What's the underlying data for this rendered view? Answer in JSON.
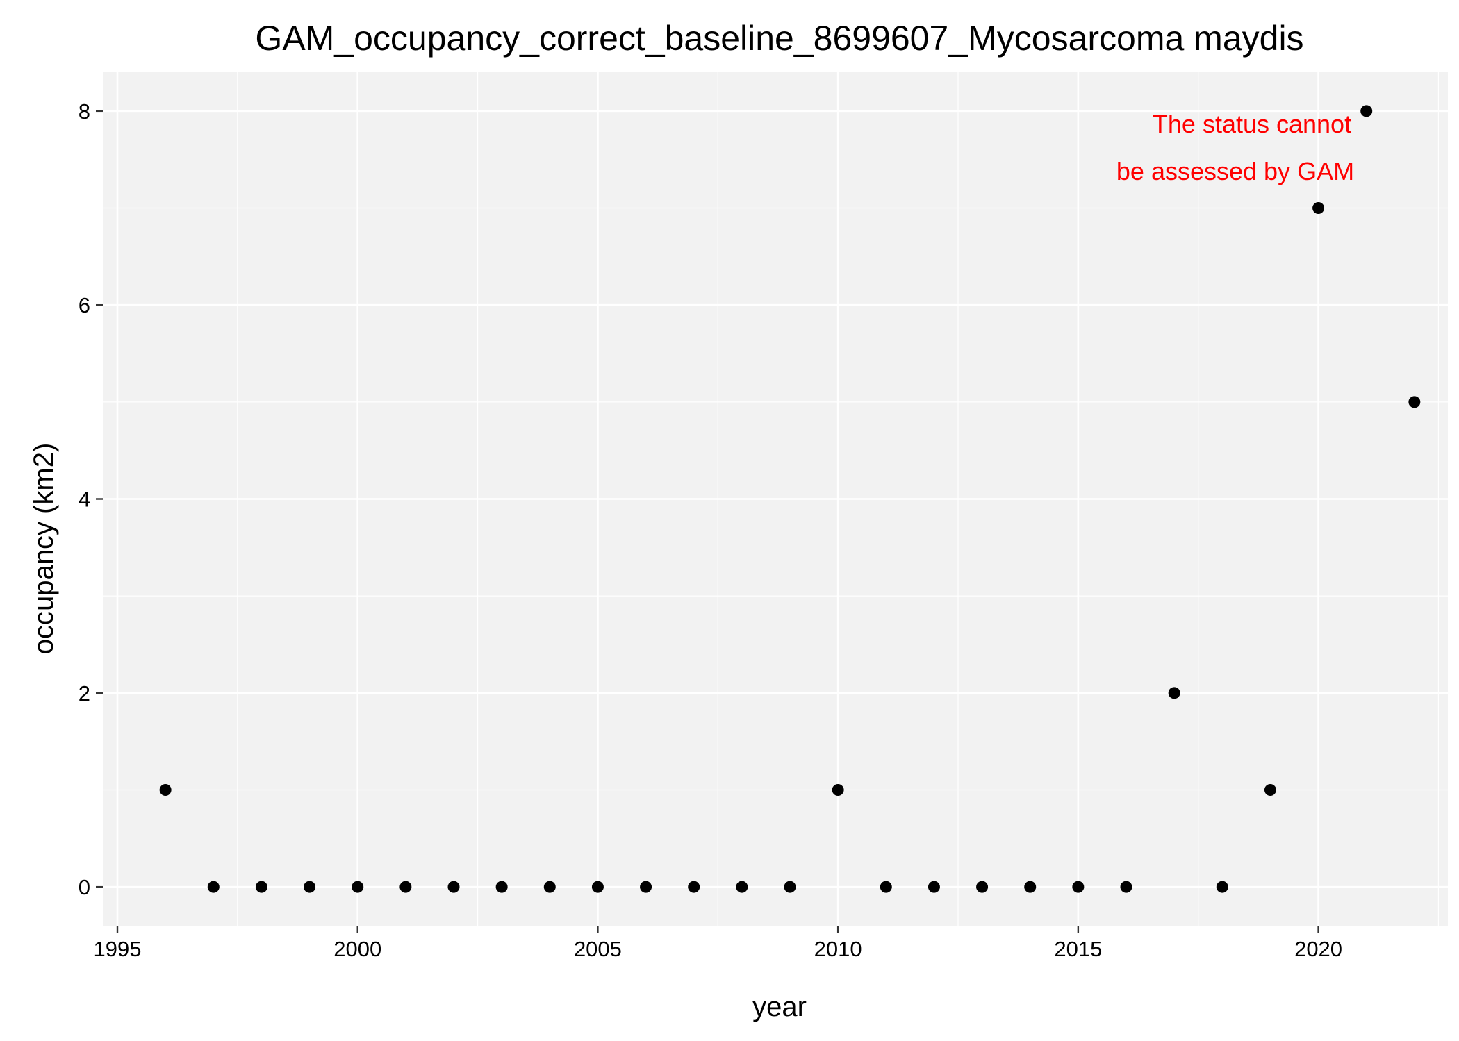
{
  "chart_data": {
    "type": "scatter",
    "title": "GAM_occupancy_correct_baseline_8699607_Mycosarcoma maydis",
    "xlabel": "year",
    "ylabel": "occupancy (km2)",
    "xlim": [
      1995,
      2023
    ],
    "ylim": [
      -0.4,
      8.4
    ],
    "x_ticks": [
      1995,
      2000,
      2005,
      2010,
      2015,
      2020
    ],
    "y_ticks": [
      0,
      2,
      4,
      6,
      8
    ],
    "grid": true,
    "panel_background": "#f2f2f2",
    "grid_color": "#ffffff",
    "point_color": "#000000",
    "series": [
      {
        "x": [
          1996,
          1997,
          1998,
          1999,
          2000,
          2001,
          2002,
          2003,
          2004,
          2005,
          2006,
          2007,
          2008,
          2009,
          2010,
          2011,
          2012,
          2013,
          2014,
          2015,
          2016,
          2017,
          2018,
          2019,
          2020,
          2021,
          2022
        ],
        "y": [
          1,
          0,
          0,
          0,
          0,
          0,
          0,
          0,
          0,
          0,
          0,
          0,
          0,
          0,
          1,
          0,
          0,
          0,
          0,
          0,
          0,
          2,
          0,
          1,
          7,
          8,
          5
        ]
      }
    ],
    "annotation": {
      "lines": [
        "The status cannot",
        "be assessed by GAM"
      ],
      "color": "#ff0000",
      "position": "top-right"
    }
  }
}
